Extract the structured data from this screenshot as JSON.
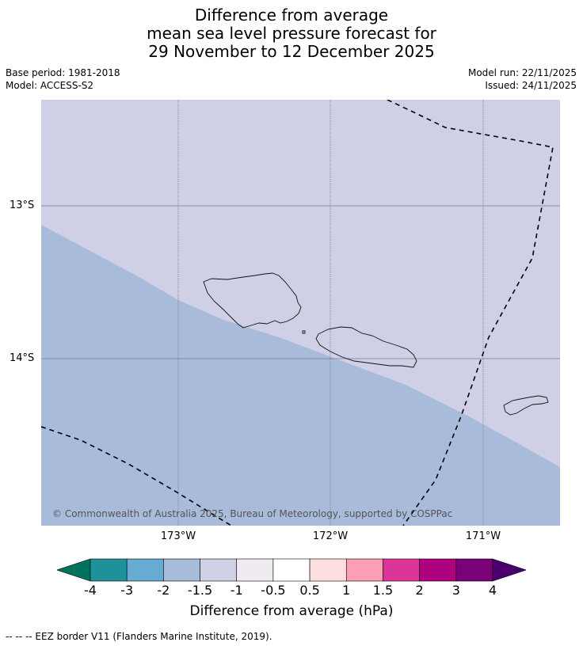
{
  "title": {
    "line1": "Difference from average",
    "line2": "mean sea level pressure forecast for",
    "line3": "29 November to 12 December 2025"
  },
  "meta": {
    "base_period": "Base period: 1981-2018",
    "model": "Model: ACCESS-S2",
    "model_run": "Model run: 22/11/2025",
    "issued": "Issued: 24/11/2025"
  },
  "map": {
    "lat_labels": [
      "13°S",
      "14°S"
    ],
    "lon_labels": [
      "173°W",
      "172°W",
      "171°W"
    ],
    "credit": "© Commonwealth of Australia 2025, Bureau of Meteorology, supported by COSPPac",
    "colors": {
      "band_minus2_minus1_5": "#a8bbdb",
      "band_minus1_5_minus1": "#cfd0e6"
    }
  },
  "colorbar": {
    "ticks": [
      "-4",
      "-3",
      "-2",
      "-1.5",
      "-1",
      "-0.5",
      "0.5",
      "1",
      "1.5",
      "2",
      "3",
      "4"
    ],
    "colors": [
      "#00725e",
      "#1d9399",
      "#67abd3",
      "#a8bbdb",
      "#cfd0e6",
      "#efebf0",
      "#ffffff",
      "#fde0dd",
      "#fa9fb5",
      "#dd3497",
      "#ae017e",
      "#7a0177",
      "#49006a"
    ],
    "label": "Difference from average (hPa)"
  },
  "legend": {
    "eez": "--  --  -- EEZ border V11 (Flanders Marine Institute, 2019)."
  }
}
